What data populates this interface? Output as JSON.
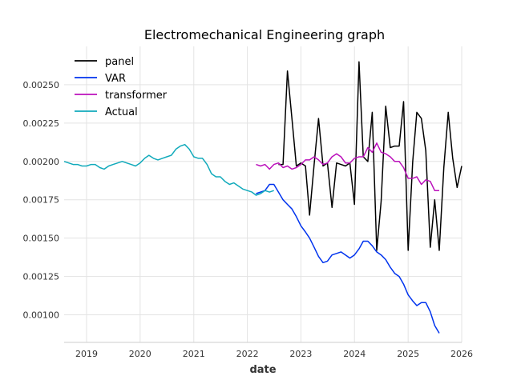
{
  "chart_data": {
    "type": "line",
    "title": "Electromechanical Engineering graph",
    "xlabel": "date",
    "ylabel": "",
    "xlim": [
      "2018-08-01",
      "2026-01-01"
    ],
    "ylim": [
      0.00082,
      0.00275
    ],
    "x_ticks": [
      "2019-01-01",
      "2020-01-01",
      "2021-01-01",
      "2022-01-01",
      "2023-01-01",
      "2024-01-01",
      "2025-01-01",
      "2026-01-01"
    ],
    "x_tick_labels": [
      "2019",
      "2020",
      "2021",
      "2022",
      "2023",
      "2024",
      "2025",
      "2026"
    ],
    "y_ticks": [
      0.001,
      0.00125,
      0.0015,
      0.00175,
      0.002,
      0.00225,
      0.0025
    ],
    "y_tick_labels": [
      "0.00100",
      "0.00125",
      "0.00150",
      "0.00175",
      "0.00200",
      "0.00225",
      "0.00250"
    ],
    "grid": true,
    "legend_position": "top-left",
    "series": [
      {
        "name": "panel",
        "color": "#000000",
        "x": [
          "2022-08-01",
          "2022-09-01",
          "2022-10-01",
          "2022-11-01",
          "2022-12-01",
          "2023-01-01",
          "2023-02-01",
          "2023-03-01",
          "2023-04-01",
          "2023-05-01",
          "2023-06-01",
          "2023-07-01",
          "2023-08-01",
          "2023-09-01",
          "2023-10-01",
          "2023-11-01",
          "2023-12-01",
          "2024-01-01",
          "2024-02-01",
          "2024-03-01",
          "2024-04-01",
          "2024-05-01",
          "2024-06-01",
          "2024-07-01",
          "2024-08-01",
          "2024-09-01",
          "2024-10-01",
          "2024-11-01",
          "2024-12-01",
          "2025-01-01",
          "2025-02-01",
          "2025-03-01",
          "2025-04-01",
          "2025-05-01",
          "2025-06-01",
          "2025-07-01",
          "2025-08-01",
          "2025-09-01",
          "2025-10-01",
          "2025-11-01",
          "2025-12-01",
          "2026-01-01"
        ],
        "values": [
          0.00198,
          0.00198,
          0.00259,
          0.00228,
          0.00197,
          0.00199,
          0.00197,
          0.00165,
          0.00198,
          0.00228,
          0.00197,
          0.00199,
          0.0017,
          0.00199,
          0.00198,
          0.00197,
          0.00199,
          0.00172,
          0.00265,
          0.00203,
          0.002,
          0.00232,
          0.00142,
          0.00174,
          0.00236,
          0.00209,
          0.0021,
          0.0021,
          0.00239,
          0.00142,
          0.002,
          0.00232,
          0.00228,
          0.00207,
          0.00144,
          0.00175,
          0.00142,
          0.00196,
          0.00232,
          0.00202,
          0.00183,
          0.00197
        ]
      },
      {
        "name": "VAR",
        "color": "#0033ee",
        "x": [
          "2022-03-01",
          "2022-04-01",
          "2022-05-01",
          "2022-06-01",
          "2022-07-01",
          "2022-08-01",
          "2022-09-01",
          "2022-10-01",
          "2022-11-01",
          "2022-12-01",
          "2023-01-01",
          "2023-02-01",
          "2023-03-01",
          "2023-04-01",
          "2023-05-01",
          "2023-06-01",
          "2023-07-01",
          "2023-08-01",
          "2023-09-01",
          "2023-10-01",
          "2023-11-01",
          "2023-12-01",
          "2024-01-01",
          "2024-02-01",
          "2024-03-01",
          "2024-04-01",
          "2024-05-01",
          "2024-06-01",
          "2024-07-01",
          "2024-08-01",
          "2024-09-01",
          "2024-10-01",
          "2024-11-01",
          "2024-12-01",
          "2025-01-01",
          "2025-02-01",
          "2025-03-01",
          "2025-04-01",
          "2025-05-01",
          "2025-06-01",
          "2025-07-01",
          "2025-08-01"
        ],
        "values": [
          0.00179,
          0.0018,
          0.00181,
          0.00185,
          0.00185,
          0.0018,
          0.00175,
          0.00172,
          0.00169,
          0.00164,
          0.00158,
          0.00154,
          0.0015,
          0.00144,
          0.00138,
          0.00134,
          0.00135,
          0.00139,
          0.0014,
          0.00141,
          0.00139,
          0.00137,
          0.00139,
          0.00143,
          0.00148,
          0.00148,
          0.00145,
          0.00141,
          0.00139,
          0.00136,
          0.00131,
          0.00127,
          0.00125,
          0.0012,
          0.00113,
          0.00109,
          0.00106,
          0.00108,
          0.00108,
          0.00102,
          0.00093,
          0.00088
        ]
      },
      {
        "name": "transformer",
        "color": "#bb11bb",
        "x": [
          "2022-03-01",
          "2022-04-01",
          "2022-05-01",
          "2022-06-01",
          "2022-07-01",
          "2022-08-01",
          "2022-09-01",
          "2022-10-01",
          "2022-11-01",
          "2022-12-01",
          "2023-01-01",
          "2023-02-01",
          "2023-03-01",
          "2023-04-01",
          "2023-05-01",
          "2023-06-01",
          "2023-07-01",
          "2023-08-01",
          "2023-09-01",
          "2023-10-01",
          "2023-11-01",
          "2023-12-01",
          "2024-01-01",
          "2024-02-01",
          "2024-03-01",
          "2024-04-01",
          "2024-05-01",
          "2024-06-01",
          "2024-07-01",
          "2024-08-01",
          "2024-09-01",
          "2024-10-01",
          "2024-11-01",
          "2024-12-01",
          "2025-01-01",
          "2025-02-01",
          "2025-03-01",
          "2025-04-01",
          "2025-05-01",
          "2025-06-01",
          "2025-07-01",
          "2025-08-01"
        ],
        "values": [
          0.00198,
          0.00197,
          0.00198,
          0.00195,
          0.00198,
          0.00199,
          0.00196,
          0.00197,
          0.00195,
          0.00196,
          0.00198,
          0.00201,
          0.00201,
          0.00203,
          0.00201,
          0.00198,
          0.00199,
          0.00203,
          0.00205,
          0.00203,
          0.00199,
          0.00199,
          0.00202,
          0.00203,
          0.00203,
          0.00209,
          0.00206,
          0.00212,
          0.00206,
          0.00205,
          0.00203,
          0.002,
          0.002,
          0.00196,
          0.00189,
          0.00189,
          0.0019,
          0.00185,
          0.00188,
          0.00187,
          0.00181,
          0.00181
        ]
      },
      {
        "name": "Actual",
        "color": "#11aabb",
        "x": [
          "2018-08-01",
          "2018-09-01",
          "2018-10-01",
          "2018-11-01",
          "2018-12-01",
          "2019-01-01",
          "2019-02-01",
          "2019-03-01",
          "2019-04-01",
          "2019-05-01",
          "2019-06-01",
          "2019-07-01",
          "2019-08-01",
          "2019-09-01",
          "2019-10-01",
          "2019-11-01",
          "2019-12-01",
          "2020-01-01",
          "2020-02-01",
          "2020-03-01",
          "2020-04-01",
          "2020-05-01",
          "2020-06-01",
          "2020-07-01",
          "2020-08-01",
          "2020-09-01",
          "2020-10-01",
          "2020-11-01",
          "2020-12-01",
          "2021-01-01",
          "2021-02-01",
          "2021-03-01",
          "2021-04-01",
          "2021-05-01",
          "2021-06-01",
          "2021-07-01",
          "2021-08-01",
          "2021-09-01",
          "2021-10-01",
          "2021-11-01",
          "2021-12-01",
          "2022-01-01",
          "2022-02-01",
          "2022-03-01",
          "2022-04-01",
          "2022-05-01",
          "2022-06-01",
          "2022-07-01"
        ],
        "values": [
          0.002,
          0.00199,
          0.00198,
          0.00198,
          0.00197,
          0.00197,
          0.00198,
          0.00198,
          0.00196,
          0.00195,
          0.00197,
          0.00198,
          0.00199,
          0.002,
          0.00199,
          0.00198,
          0.00197,
          0.00199,
          0.00202,
          0.00204,
          0.00202,
          0.00201,
          0.00202,
          0.00203,
          0.00204,
          0.00208,
          0.0021,
          0.00211,
          0.00208,
          0.00203,
          0.00202,
          0.00202,
          0.00198,
          0.00192,
          0.0019,
          0.0019,
          0.00187,
          0.00185,
          0.00186,
          0.00184,
          0.00182,
          0.00181,
          0.0018,
          0.00178,
          0.00179,
          0.00181,
          0.0018,
          0.00181
        ]
      }
    ]
  }
}
